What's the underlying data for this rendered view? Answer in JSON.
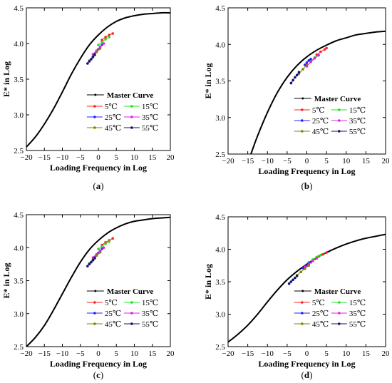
{
  "figure": {
    "panel_labels": [
      "(a)",
      "(b)",
      "(c)",
      "(d)"
    ]
  },
  "colors": {
    "master": "#000000",
    "5C": "#ff2020",
    "15C": "#20e020",
    "25C": "#2020ff",
    "35C": "#e020e0",
    "45C": "#808000",
    "55C": "#101070"
  },
  "chart_data": [
    {
      "type": "line",
      "panel": "(a)",
      "xlabel": "Loading Frequency in Log",
      "ylabel": "E* in Log",
      "xlim": [
        -20,
        20
      ],
      "ylim": [
        2.5,
        4.5
      ],
      "xticks": [
        -20,
        -15,
        -10,
        -5,
        0,
        5,
        10,
        15,
        20
      ],
      "yticks": [
        2.5,
        3.0,
        3.5,
        4.0,
        4.5
      ],
      "grid": false,
      "legend": "bottom-right",
      "master_curve": {
        "name": "Master Curve",
        "x": [
          -20,
          -17.5,
          -15,
          -12.5,
          -10,
          -7.5,
          -5,
          -2.5,
          0,
          2.5,
          5,
          7.5,
          10,
          12.5,
          15,
          17.5,
          20
        ],
        "y": [
          2.55,
          2.69,
          2.87,
          3.08,
          3.32,
          3.57,
          3.79,
          3.98,
          4.12,
          4.23,
          4.31,
          4.36,
          4.39,
          4.41,
          4.42,
          4.43,
          4.43
        ]
      },
      "series": [
        {
          "name": "5℃",
          "x": [
            1.0,
            2.0,
            3.0,
            4.0
          ],
          "y": [
            4.05,
            4.09,
            4.12,
            4.14
          ]
        },
        {
          "name": "15℃",
          "x": [
            0.0,
            1.0,
            2.0,
            3.0
          ],
          "y": [
            3.98,
            4.02,
            4.06,
            4.09
          ]
        },
        {
          "name": "25℃",
          "x": [
            -1.0,
            -0.5,
            0.0,
            0.5,
            1.0
          ],
          "y": [
            3.86,
            3.89,
            3.92,
            3.95,
            3.98
          ]
        },
        {
          "name": "35℃",
          "x": [
            -1.5,
            -0.5,
            0.5,
            1.5
          ],
          "y": [
            3.85,
            3.9,
            3.95,
            4.0
          ]
        },
        {
          "name": "45℃",
          "x": [
            -2.5,
            -1.5,
            -0.5,
            0.5
          ],
          "y": [
            3.76,
            3.82,
            3.88,
            3.93
          ]
        },
        {
          "name": "55℃",
          "x": [
            -3.0,
            -2.5,
            -2.0,
            -1.5,
            -1.0
          ],
          "y": [
            3.72,
            3.75,
            3.78,
            3.81,
            3.84
          ]
        }
      ]
    },
    {
      "type": "line",
      "panel": "(b)",
      "xlabel": "Loading Frequency in Log",
      "ylabel": "E* in Log",
      "xlim": [
        -20,
        20
      ],
      "ylim": [
        2.5,
        4.5
      ],
      "xticks": [
        -20,
        -15,
        -10,
        -5,
        0,
        5,
        10,
        15,
        20
      ],
      "yticks": [
        2.5,
        3.0,
        3.5,
        4.0,
        4.5
      ],
      "grid": false,
      "legend": "bottom-right",
      "master_curve": {
        "name": "Master Curve",
        "x": [
          -14.2,
          -12.5,
          -10,
          -7.5,
          -5,
          -2.5,
          0,
          2.5,
          5,
          7.5,
          10,
          12.5,
          15,
          17.5,
          20
        ],
        "y": [
          2.5,
          2.75,
          3.07,
          3.34,
          3.55,
          3.71,
          3.83,
          3.92,
          3.99,
          4.05,
          4.09,
          4.13,
          4.15,
          4.17,
          4.18
        ]
      },
      "series": [
        {
          "name": "5℃",
          "x": [
            2.5,
            3.5,
            4.5,
            5.0
          ],
          "y": [
            3.86,
            3.9,
            3.93,
            3.95
          ]
        },
        {
          "name": "15℃",
          "x": [
            1.0,
            2.0,
            3.0
          ],
          "y": [
            3.77,
            3.82,
            3.86
          ]
        },
        {
          "name": "25℃",
          "x": [
            -0.5,
            0.0,
            0.5,
            1.0
          ],
          "y": [
            3.72,
            3.75,
            3.78,
            3.8
          ]
        },
        {
          "name": "35℃",
          "x": [
            0.0,
            1.0,
            2.0,
            3.0
          ],
          "y": [
            3.7,
            3.76,
            3.81,
            3.85
          ]
        },
        {
          "name": "45℃",
          "x": [
            -2.0,
            -1.0,
            0.0
          ],
          "y": [
            3.6,
            3.66,
            3.72
          ]
        },
        {
          "name": "55℃",
          "x": [
            -4.0,
            -3.5,
            -3.0,
            -2.5,
            -2.0
          ],
          "y": [
            3.47,
            3.51,
            3.55,
            3.58,
            3.62
          ]
        }
      ]
    },
    {
      "type": "line",
      "panel": "(c)",
      "xlabel": "Loading Frequency in Log",
      "ylabel": "E* in Log",
      "xlim": [
        -20,
        20
      ],
      "ylim": [
        2.5,
        4.5
      ],
      "xticks": [
        -20,
        -15,
        -10,
        -5,
        0,
        5,
        10,
        15,
        20
      ],
      "yticks": [
        2.5,
        3.0,
        3.5,
        4.0,
        4.5
      ],
      "grid": false,
      "legend": "bottom-right",
      "master_curve": {
        "name": "Master Curve",
        "x": [
          -20,
          -17.5,
          -15,
          -12.5,
          -10,
          -7.5,
          -5,
          -2.5,
          0,
          2.5,
          5,
          7.5,
          10,
          12.5,
          15,
          17.5,
          20
        ],
        "y": [
          2.5,
          2.64,
          2.82,
          3.05,
          3.3,
          3.55,
          3.78,
          3.97,
          4.11,
          4.22,
          4.3,
          4.36,
          4.4,
          4.42,
          4.44,
          4.45,
          4.46
        ]
      },
      "series": [
        {
          "name": "5℃",
          "x": [
            1.0,
            2.0,
            3.0,
            4.0
          ],
          "y": [
            4.04,
            4.08,
            4.11,
            4.14
          ]
        },
        {
          "name": "15℃",
          "x": [
            0.0,
            1.0,
            2.0,
            3.0
          ],
          "y": [
            3.98,
            4.02,
            4.06,
            4.09
          ]
        },
        {
          "name": "25℃",
          "x": [
            -1.0,
            -0.5,
            0.0,
            0.5,
            1.0
          ],
          "y": [
            3.86,
            3.89,
            3.92,
            3.95,
            3.98
          ]
        },
        {
          "name": "35℃",
          "x": [
            -1.5,
            -0.5,
            0.5,
            1.5
          ],
          "y": [
            3.85,
            3.9,
            3.95,
            4.0
          ]
        },
        {
          "name": "45℃",
          "x": [
            -2.5,
            -1.5,
            -0.5,
            0.5
          ],
          "y": [
            3.76,
            3.82,
            3.88,
            3.93
          ]
        },
        {
          "name": "55℃",
          "x": [
            -3.0,
            -2.5,
            -2.0,
            -1.5,
            -1.0
          ],
          "y": [
            3.72,
            3.75,
            3.78,
            3.81,
            3.84
          ]
        }
      ]
    },
    {
      "type": "line",
      "panel": "(d)",
      "xlabel": "Loading Frequency in Log",
      "ylabel": "E* in Log",
      "xlim": [
        -20,
        20
      ],
      "ylim": [
        2.5,
        4.5
      ],
      "xticks": [
        -20,
        -15,
        -10,
        -5,
        0,
        5,
        10,
        15,
        20
      ],
      "yticks": [
        2.5,
        3.0,
        3.5,
        4.0,
        4.5
      ],
      "grid": false,
      "legend": "bottom-right",
      "master_curve": {
        "name": "Master Curve",
        "x": [
          -20,
          -17.5,
          -15,
          -12.5,
          -10,
          -7.5,
          -5,
          -2.5,
          0,
          2.5,
          5,
          7.5,
          10,
          12.5,
          15,
          17.5,
          20
        ],
        "y": [
          2.57,
          2.69,
          2.83,
          3.0,
          3.19,
          3.37,
          3.53,
          3.66,
          3.77,
          3.87,
          3.95,
          4.02,
          4.08,
          4.13,
          4.17,
          4.2,
          4.23
        ]
      },
      "series": [
        {
          "name": "5℃",
          "x": [
            2.0,
            3.0,
            4.0,
            5.0
          ],
          "y": [
            3.85,
            3.89,
            3.92,
            3.95
          ]
        },
        {
          "name": "15℃",
          "x": [
            0.5,
            1.5,
            2.5,
            3.5
          ],
          "y": [
            3.8,
            3.84,
            3.88,
            3.91
          ]
        },
        {
          "name": "25℃",
          "x": [
            -1.0,
            -0.5,
            0.0,
            0.5,
            1.0
          ],
          "y": [
            3.71,
            3.73,
            3.75,
            3.78,
            3.8
          ]
        },
        {
          "name": "35℃",
          "x": [
            -0.5,
            0.5,
            1.5,
            2.5
          ],
          "y": [
            3.73,
            3.77,
            3.82,
            3.86
          ]
        },
        {
          "name": "45℃",
          "x": [
            -2.5,
            -1.5,
            -0.5,
            0.5
          ],
          "y": [
            3.6,
            3.65,
            3.7,
            3.75
          ]
        },
        {
          "name": "55℃",
          "x": [
            -4.5,
            -4.0,
            -3.5,
            -3.0,
            -2.5
          ],
          "y": [
            3.47,
            3.5,
            3.53,
            3.56,
            3.59
          ]
        }
      ]
    }
  ]
}
